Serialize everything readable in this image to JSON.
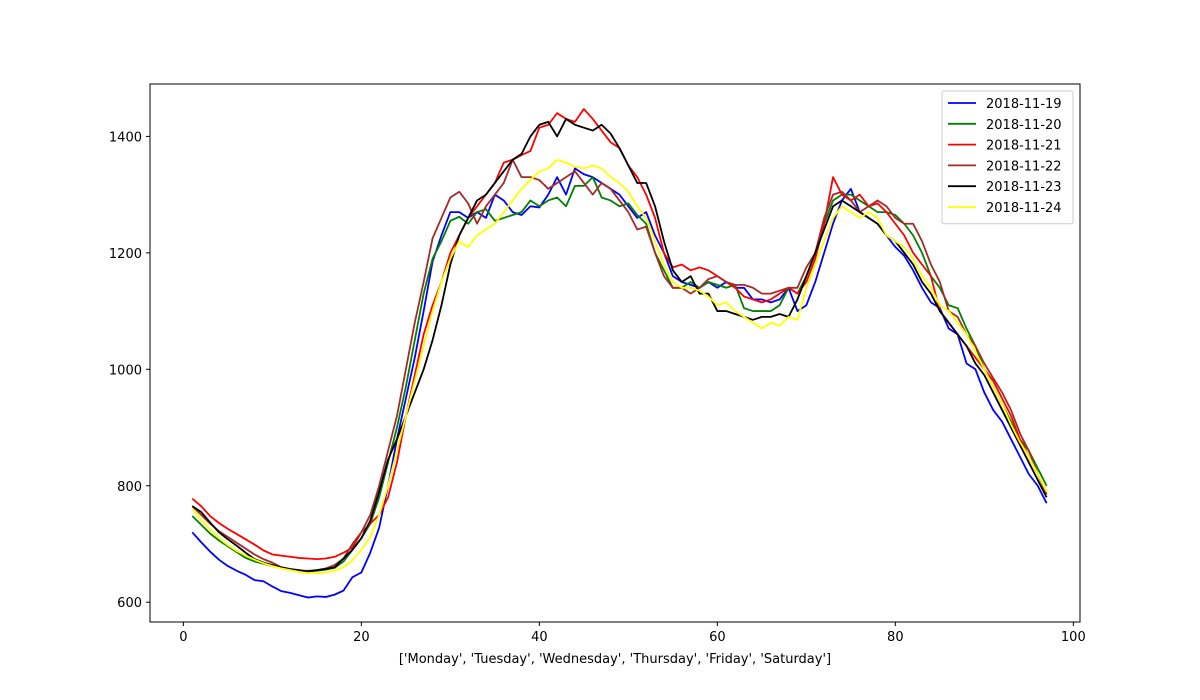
{
  "chart_data": {
    "type": "line",
    "title": "",
    "xlabel": "['Monday', 'Tuesday', 'Wednesday', 'Thursday', 'Friday', 'Saturday']",
    "ylabel": "",
    "xlim": [
      -3.75,
      100.75
    ],
    "ylim": [
      566,
      1490
    ],
    "xticks": [
      0,
      20,
      40,
      60,
      80,
      100
    ],
    "yticks": [
      600,
      800,
      1000,
      1200,
      1400
    ],
    "grid": false,
    "legend_position": "top-right",
    "x_start": 1,
    "series": [
      {
        "name": "2018-11-19",
        "color": "#0000ff",
        "values": [
          720,
          703,
          687,
          673,
          662,
          654,
          647,
          638,
          636,
          627,
          619,
          616,
          612,
          608,
          610,
          609,
          613,
          620,
          643,
          651,
          685,
          728,
          800,
          880,
          950,
          1020,
          1100,
          1185,
          1230,
          1270,
          1270,
          1260,
          1270,
          1260,
          1300,
          1290,
          1270,
          1265,
          1280,
          1278,
          1300,
          1330,
          1300,
          1345,
          1335,
          1330,
          1320,
          1310,
          1300,
          1280,
          1260,
          1270,
          1230,
          1200,
          1160,
          1150,
          1145,
          1140,
          1150,
          1140,
          1150,
          1140,
          1140,
          1120,
          1120,
          1115,
          1120,
          1140,
          1100,
          1110,
          1150,
          1200,
          1250,
          1290,
          1310,
          1270,
          1260,
          1250,
          1230,
          1210,
          1195,
          1170,
          1140,
          1115,
          1105,
          1070,
          1060,
          1010,
          1000,
          960,
          930,
          910,
          880,
          850,
          820,
          800,
          770
        ]
      },
      {
        "name": "2018-11-20",
        "color": "#008000",
        "values": [
          748,
          733,
          718,
          706,
          696,
          686,
          676,
          670,
          666,
          662,
          659,
          656,
          653,
          653,
          654,
          656,
          659,
          670,
          690,
          710,
          735,
          780,
          840,
          900,
          970,
          1050,
          1130,
          1190,
          1220,
          1255,
          1262,
          1250,
          1270,
          1275,
          1255,
          1260,
          1265,
          1270,
          1290,
          1280,
          1290,
          1295,
          1280,
          1315,
          1315,
          1330,
          1295,
          1290,
          1280,
          1285,
          1265,
          1250,
          1200,
          1170,
          1140,
          1140,
          1150,
          1140,
          1150,
          1145,
          1140,
          1145,
          1105,
          1100,
          1100,
          1100,
          1110,
          1140,
          1130,
          1160,
          1200,
          1250,
          1290,
          1300,
          1300,
          1290,
          1280,
          1270,
          1270,
          1265,
          1250,
          1230,
          1200,
          1160,
          1140,
          1110,
          1105,
          1070,
          1040,
          1000,
          970,
          940,
          910,
          880,
          860,
          830,
          800
        ]
      },
      {
        "name": "2018-11-21",
        "color": "#ff0000",
        "values": [
          778,
          765,
          748,
          736,
          726,
          717,
          708,
          699,
          689,
          682,
          680,
          678,
          676,
          675,
          674,
          675,
          678,
          685,
          694,
          720,
          735,
          750,
          780,
          840,
          920,
          990,
          1060,
          1110,
          1150,
          1200,
          1230,
          1260,
          1280,
          1300,
          1320,
          1355,
          1360,
          1368,
          1375,
          1415,
          1420,
          1440,
          1430,
          1425,
          1447,
          1430,
          1410,
          1390,
          1380,
          1350,
          1330,
          1300,
          1260,
          1200,
          1175,
          1180,
          1170,
          1175,
          1170,
          1160,
          1150,
          1140,
          1125,
          1120,
          1115,
          1120,
          1130,
          1140,
          1130,
          1150,
          1190,
          1250,
          1330,
          1300,
          1290,
          1300,
          1280,
          1285,
          1270,
          1250,
          1230,
          1200,
          1180,
          1160,
          1100,
          1080,
          1060,
          1040,
          1020,
          1000,
          980,
          950,
          920,
          880,
          850,
          820,
          790
        ]
      },
      {
        "name": "2018-11-22",
        "color": "#a52a2a",
        "values": [
          765,
          750,
          735,
          722,
          712,
          702,
          692,
          682,
          674,
          668,
          660,
          656,
          654,
          654,
          655,
          658,
          664,
          675,
          700,
          720,
          750,
          800,
          860,
          920,
          1000,
          1080,
          1150,
          1225,
          1260,
          1295,
          1305,
          1285,
          1250,
          1280,
          1300,
          1320,
          1360,
          1330,
          1330,
          1325,
          1310,
          1320,
          1330,
          1340,
          1320,
          1300,
          1320,
          1310,
          1290,
          1270,
          1240,
          1245,
          1200,
          1160,
          1140,
          1140,
          1130,
          1140,
          1155,
          1160,
          1150,
          1145,
          1145,
          1140,
          1130,
          1130,
          1135,
          1140,
          1140,
          1175,
          1200,
          1260,
          1300,
          1305,
          1290,
          1270,
          1280,
          1290,
          1280,
          1260,
          1250,
          1250,
          1220,
          1180,
          1150,
          1100,
          1090,
          1060,
          1040,
          1010,
          985,
          960,
          930,
          890,
          860,
          820,
          785
        ]
      },
      {
        "name": "2018-11-23",
        "color": "#000000",
        "values": [
          765,
          755,
          737,
          720,
          708,
          697,
          685,
          674,
          668,
          664,
          660,
          657,
          655,
          653,
          655,
          657,
          660,
          675,
          690,
          710,
          740,
          790,
          845,
          880,
          920,
          960,
          1000,
          1050,
          1110,
          1180,
          1230,
          1260,
          1290,
          1300,
          1320,
          1340,
          1360,
          1370,
          1400,
          1420,
          1425,
          1400,
          1430,
          1420,
          1415,
          1410,
          1420,
          1405,
          1380,
          1350,
          1320,
          1320,
          1280,
          1220,
          1170,
          1150,
          1160,
          1130,
          1130,
          1100,
          1100,
          1095,
          1090,
          1085,
          1090,
          1090,
          1095,
          1090,
          1120,
          1160,
          1200,
          1240,
          1280,
          1290,
          1280,
          1270,
          1260,
          1250,
          1230,
          1220,
          1200,
          1180,
          1150,
          1130,
          1100,
          1080,
          1060,
          1040,
          1010,
          990,
          960,
          930,
          900,
          870,
          840,
          810,
          780
        ]
      },
      {
        "name": "2018-11-24",
        "color": "#ffff00",
        "values": [
          760,
          742,
          725,
          710,
          698,
          688,
          680,
          673,
          667,
          662,
          658,
          655,
          652,
          650,
          650,
          651,
          654,
          660,
          672,
          690,
          712,
          750,
          800,
          860,
          920,
          980,
          1040,
          1100,
          1150,
          1190,
          1220,
          1210,
          1230,
          1240,
          1250,
          1270,
          1290,
          1310,
          1325,
          1340,
          1345,
          1360,
          1355,
          1348,
          1345,
          1350,
          1345,
          1330,
          1320,
          1305,
          1280,
          1260,
          1220,
          1180,
          1150,
          1140,
          1140,
          1135,
          1125,
          1110,
          1115,
          1100,
          1090,
          1080,
          1070,
          1080,
          1075,
          1090,
          1085,
          1140,
          1180,
          1220,
          1260,
          1280,
          1270,
          1260,
          1270,
          1260,
          1230,
          1220,
          1210,
          1190,
          1160,
          1140,
          1110,
          1100,
          1080,
          1060,
          1030,
          1000,
          970,
          940,
          905,
          875,
          850,
          820,
          790
        ]
      }
    ]
  }
}
